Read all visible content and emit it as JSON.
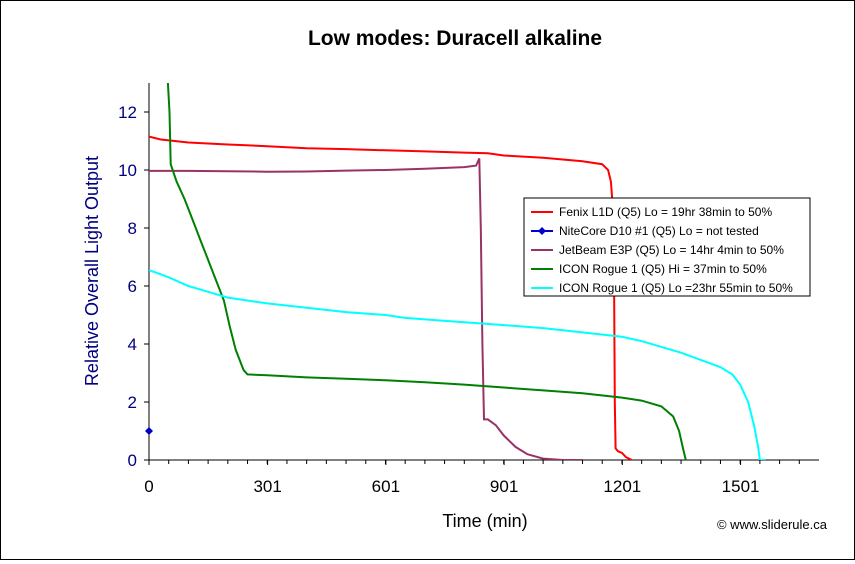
{
  "chart_data": {
    "type": "line",
    "title": "Low modes: Duracell alkaline",
    "xlabel": "Time (min)",
    "ylabel": "Relative Overall Light Output",
    "xlim": [
      0,
      1700
    ],
    "ylim": [
      0,
      13
    ],
    "x_ticks": [
      0,
      301,
      601,
      901,
      1201,
      1501
    ],
    "y_ticks": [
      0,
      2,
      4,
      6,
      8,
      10,
      12
    ],
    "grid": false,
    "legend_position": "right",
    "copyright": "© www.sliderule.ca",
    "series": [
      {
        "name": "Fenix L1D (Q5) Lo = 19hr 38min to 50%",
        "color": "#ff0000",
        "marker": "none",
        "points": [
          [
            0,
            11.15
          ],
          [
            30,
            11.05
          ],
          [
            100,
            10.95
          ],
          [
            200,
            10.88
          ],
          [
            300,
            10.82
          ],
          [
            400,
            10.75
          ],
          [
            500,
            10.72
          ],
          [
            600,
            10.68
          ],
          [
            700,
            10.64
          ],
          [
            800,
            10.6
          ],
          [
            860,
            10.58
          ],
          [
            900,
            10.5
          ],
          [
            1000,
            10.42
          ],
          [
            1100,
            10.3
          ],
          [
            1150,
            10.2
          ],
          [
            1165,
            10.0
          ],
          [
            1172,
            9.6
          ],
          [
            1178,
            8.5
          ],
          [
            1180,
            6.0
          ],
          [
            1182,
            2.0
          ],
          [
            1184,
            0.4
          ],
          [
            1190,
            0.3
          ],
          [
            1200,
            0.25
          ],
          [
            1210,
            0.1
          ],
          [
            1225,
            0.0
          ]
        ]
      },
      {
        "name": "NiteCore D10 #1 (Q5) Lo = not tested",
        "color": "#0000cc",
        "marker": "diamond",
        "points": [
          [
            0,
            1.0
          ]
        ]
      },
      {
        "name": "JetBeam E3P (Q5) Lo = 14hr 4min to 50%",
        "color": "#993366",
        "marker": "none",
        "points": [
          [
            0,
            9.97
          ],
          [
            100,
            9.97
          ],
          [
            200,
            9.96
          ],
          [
            300,
            9.94
          ],
          [
            400,
            9.95
          ],
          [
            500,
            9.98
          ],
          [
            600,
            10.0
          ],
          [
            700,
            10.04
          ],
          [
            800,
            10.1
          ],
          [
            830,
            10.15
          ],
          [
            838,
            10.4
          ],
          [
            842,
            8.0
          ],
          [
            846,
            4.0
          ],
          [
            850,
            1.4
          ],
          [
            860,
            1.4
          ],
          [
            880,
            1.2
          ],
          [
            900,
            0.85
          ],
          [
            930,
            0.45
          ],
          [
            960,
            0.2
          ],
          [
            1000,
            0.05
          ],
          [
            1050,
            0.0
          ],
          [
            1100,
            0.0
          ]
        ]
      },
      {
        "name": "ICON Rogue 1 (Q5) Hi = 37min to 50%",
        "color": "#008000",
        "marker": "none",
        "points": [
          [
            48,
            13.0
          ],
          [
            52,
            12.0
          ],
          [
            55,
            10.2
          ],
          [
            70,
            9.6
          ],
          [
            90,
            9.0
          ],
          [
            110,
            8.3
          ],
          [
            130,
            7.6
          ],
          [
            150,
            6.9
          ],
          [
            170,
            6.2
          ],
          [
            190,
            5.5
          ],
          [
            205,
            4.6
          ],
          [
            220,
            3.8
          ],
          [
            240,
            3.1
          ],
          [
            250,
            2.95
          ],
          [
            300,
            2.92
          ],
          [
            400,
            2.85
          ],
          [
            500,
            2.8
          ],
          [
            600,
            2.75
          ],
          [
            700,
            2.68
          ],
          [
            800,
            2.6
          ],
          [
            900,
            2.5
          ],
          [
            1000,
            2.4
          ],
          [
            1100,
            2.3
          ],
          [
            1200,
            2.15
          ],
          [
            1250,
            2.05
          ],
          [
            1300,
            1.85
          ],
          [
            1330,
            1.5
          ],
          [
            1345,
            1.0
          ],
          [
            1355,
            0.4
          ],
          [
            1362,
            0.0
          ]
        ]
      },
      {
        "name": "ICON Rogue 1 (Q5) Lo =23hr 55min to 50%",
        "color": "#00ffff",
        "marker": "none",
        "points": [
          [
            0,
            6.55
          ],
          [
            50,
            6.3
          ],
          [
            100,
            6.0
          ],
          [
            150,
            5.8
          ],
          [
            200,
            5.6
          ],
          [
            300,
            5.4
          ],
          [
            400,
            5.25
          ],
          [
            500,
            5.1
          ],
          [
            600,
            5.0
          ],
          [
            650,
            4.9
          ],
          [
            700,
            4.85
          ],
          [
            800,
            4.75
          ],
          [
            900,
            4.65
          ],
          [
            1000,
            4.55
          ],
          [
            1100,
            4.4
          ],
          [
            1200,
            4.25
          ],
          [
            1250,
            4.1
          ],
          [
            1300,
            3.9
          ],
          [
            1350,
            3.7
          ],
          [
            1400,
            3.45
          ],
          [
            1450,
            3.2
          ],
          [
            1480,
            2.95
          ],
          [
            1500,
            2.6
          ],
          [
            1520,
            2.0
          ],
          [
            1535,
            1.2
          ],
          [
            1545,
            0.5
          ],
          [
            1550,
            0.0
          ],
          [
            1565,
            0.0
          ]
        ]
      }
    ]
  }
}
